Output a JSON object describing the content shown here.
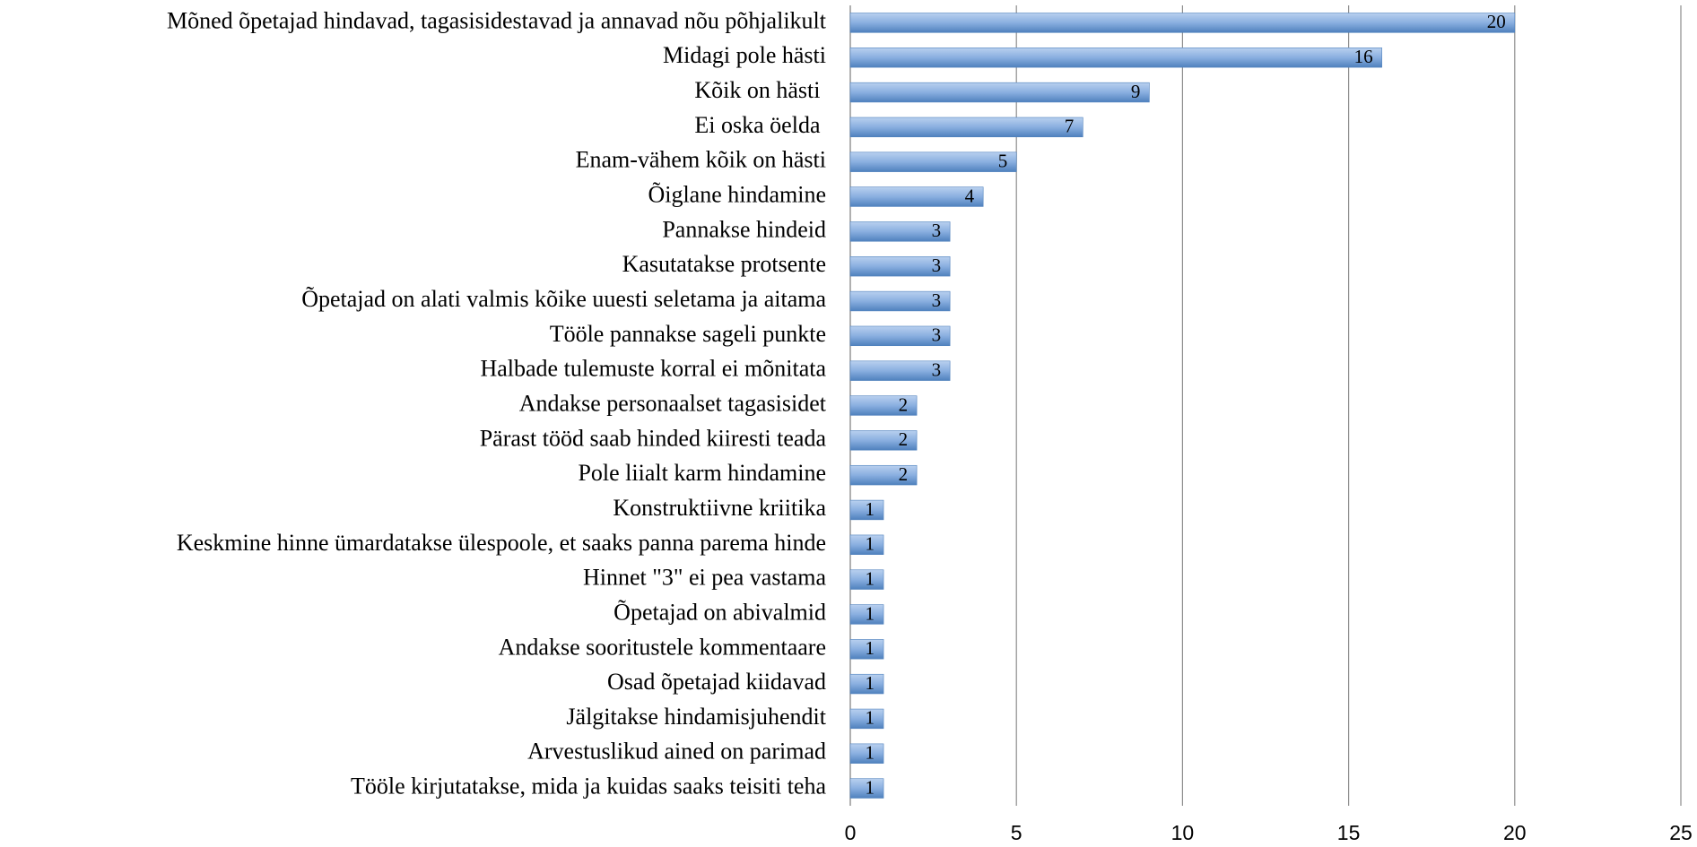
{
  "chart_data": {
    "type": "bar",
    "orientation": "horizontal",
    "categories": [
      "Mõned õpetajad hindavad, tagasisidestavad ja annavad nõu põhjalikult",
      "Midagi pole hästi",
      "Kõik on hästi ",
      "Ei oska öelda ",
      "Enam-vähem kõik on hästi",
      "Õiglane hindamine",
      "Pannakse hindeid",
      "Kasutatakse protsente",
      "Õpetajad on alati valmis kõike uuesti seletama ja aitama",
      "Tööle pannakse sageli punkte",
      "Halbade tulemuste korral ei mõnitata",
      "Andakse personaalset tagasisidet",
      "Pärast tööd saab hinded kiiresti teada",
      "Pole liialt karm hindamine",
      "Konstruktiivne kriitika",
      "Keskmine hinne ümardatakse ülespoole, et saaks panna parema hinde",
      "Hinnet \"3\" ei pea vastama",
      "Õpetajad on abivalmid",
      "Andakse sooritustele kommentaare",
      "Osad õpetajad kiidavad",
      "Jälgitakse hindamisjuhendit",
      "Arvestuslikud ained on parimad",
      "Tööle kirjutatakse, mida ja kuidas saaks teisiti teha"
    ],
    "values": [
      20,
      16,
      9,
      7,
      5,
      4,
      3,
      3,
      3,
      3,
      3,
      2,
      2,
      2,
      1,
      1,
      1,
      1,
      1,
      1,
      1,
      1,
      1
    ],
    "color": "#4f81bd",
    "xlim": [
      0,
      25
    ],
    "xticks": [
      0,
      5,
      10,
      15,
      20,
      25
    ],
    "grid": true
  }
}
